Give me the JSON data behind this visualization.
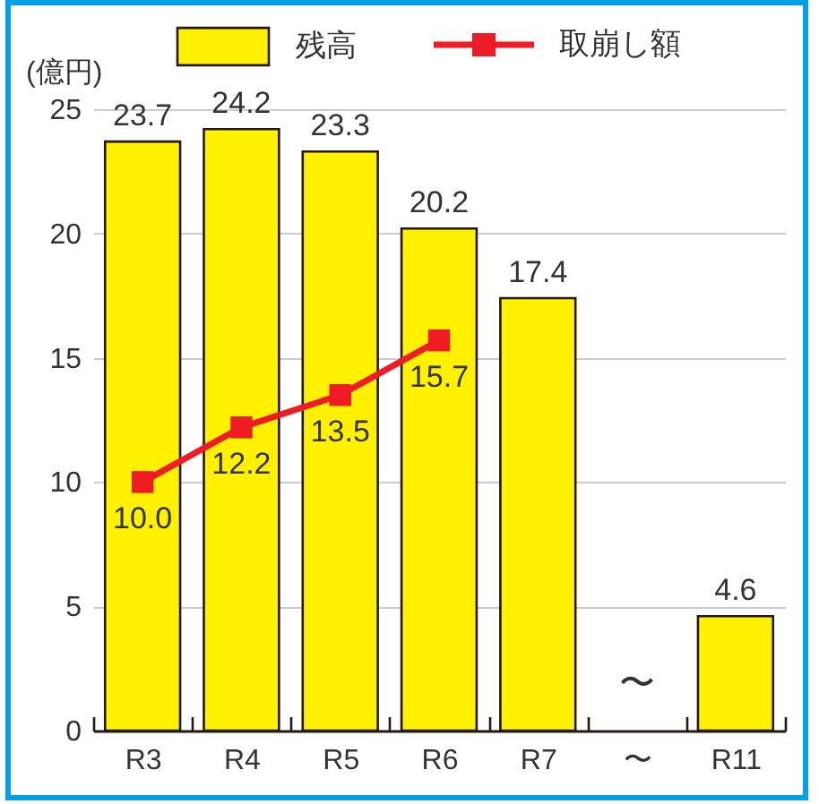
{
  "chart_data": {
    "type": "bar",
    "ylabel": "(億円)",
    "categories": [
      "R3",
      "R4",
      "R5",
      "R6",
      "R7",
      "〜",
      "R11"
    ],
    "series": [
      {
        "name": "残高",
        "color": "#fff100",
        "values": [
          23.7,
          24.2,
          23.3,
          20.2,
          17.4,
          null,
          4.6
        ],
        "value_labels": [
          "23.7",
          "24.2",
          "23.3",
          "20.2",
          "17.4",
          null,
          "4.6"
        ]
      },
      {
        "name": "取崩し額",
        "type": "line",
        "color": "#ee1c25",
        "marker": "square",
        "values": [
          10.0,
          12.2,
          13.5,
          15.7,
          null,
          null,
          null
        ],
        "value_labels": [
          "10.0",
          "12.2",
          "13.5",
          "15.7",
          null,
          null,
          null
        ]
      }
    ],
    "ylim": [
      0,
      25
    ],
    "yticks": [
      0,
      5,
      10,
      15,
      20,
      25
    ],
    "grid": "y",
    "legend": "top",
    "annotations": [
      "〜"
    ]
  }
}
